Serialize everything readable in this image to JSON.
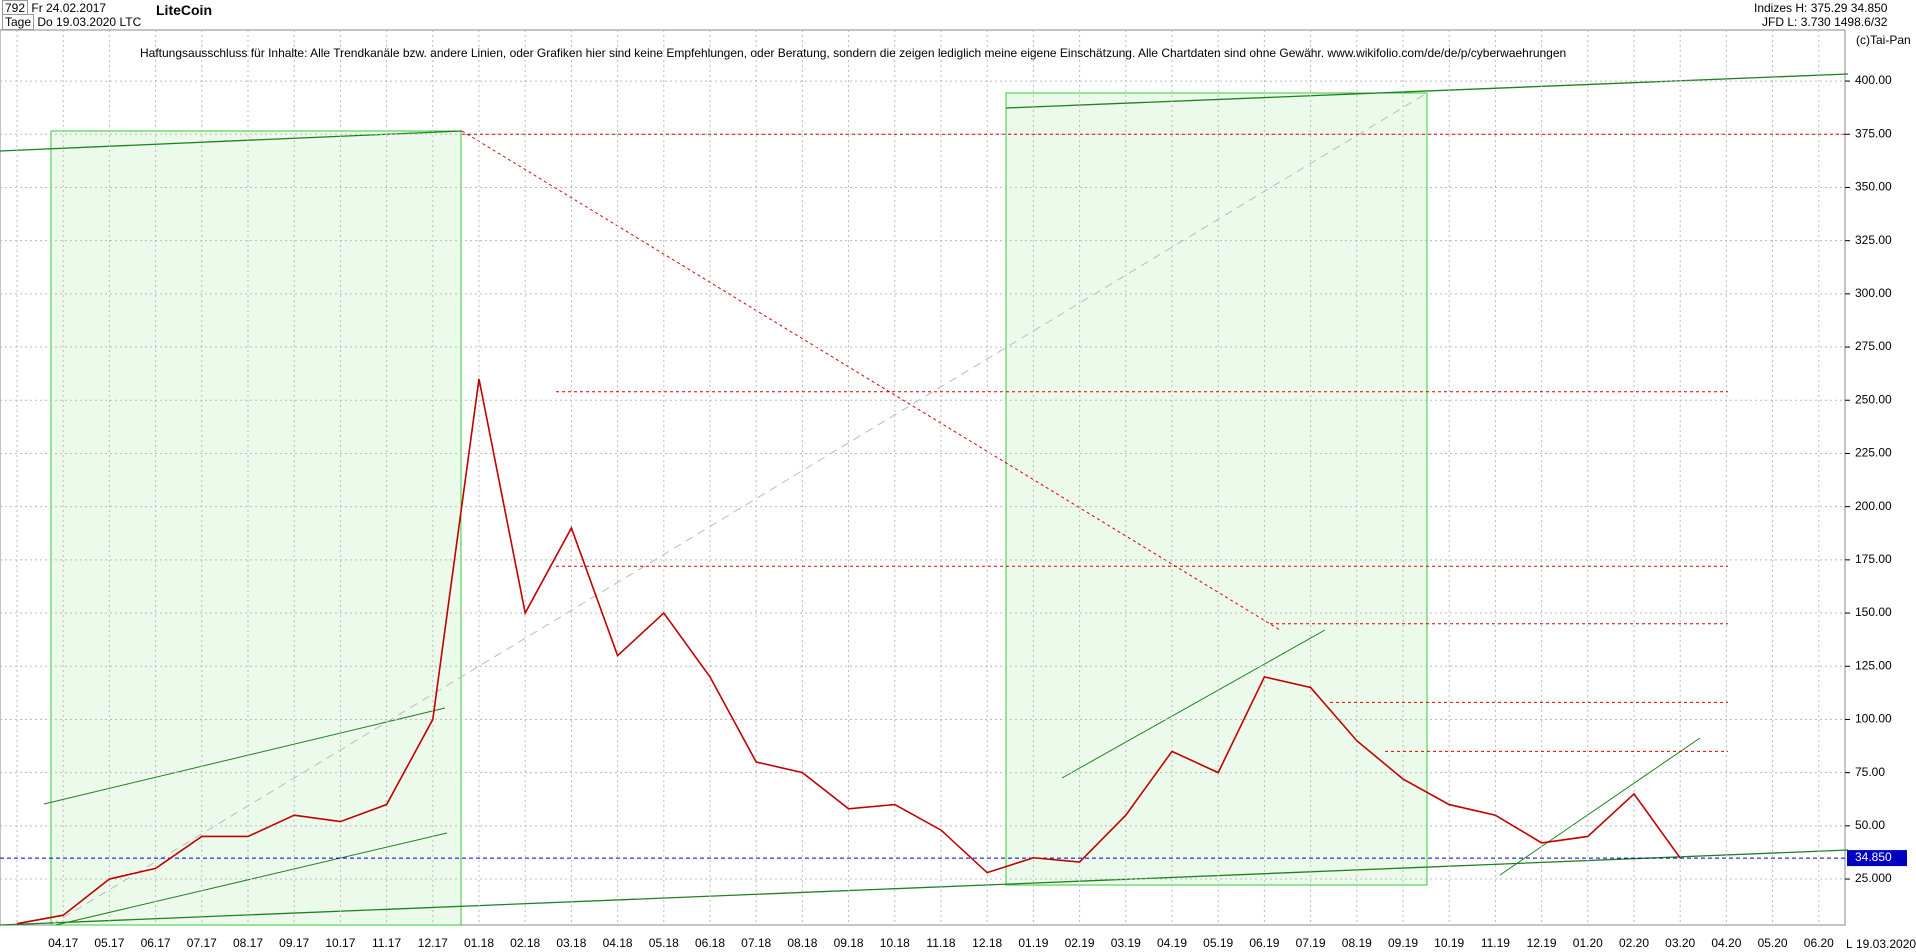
{
  "header": {
    "count": "792",
    "period": "Tage",
    "start_date": "Fr 24.02.2017",
    "end_date": "Do 19.03.2020",
    "symbol": "LTC",
    "indices": "Indizes",
    "source": "JFD",
    "high": "H: 375.29",
    "low": "L: 3.730",
    "last": "34.850",
    "ratio": "1498.6/32",
    "copyright": "(c)Tai-Pan",
    "axis_date": "19.03.2020",
    "axis_mode": "L"
  },
  "chart_data": {
    "type": "line",
    "title": "LiteCoin",
    "subtitle": "Haftungsausschluss für Inhalte: Alle Trendkanäle bzw. andere Linien, oder Grafiken hier sind keine Empfehlungen, oder Beratung, sondern die zeigen lediglich meine eigene Einschätzung. Alle Chartdaten sind ohne Gewähr.  www.wikifolio.com/de/de/p/cyberwaehrungen",
    "categories": [
      null,
      "04.17",
      "05.17",
      "06.17",
      "07.17",
      "08.17",
      "09.17",
      "10.17",
      "11.17",
      "12.17",
      "01.18",
      "02.18",
      "03.18",
      "04.18",
      "05.18",
      "06.18",
      "07.18",
      "08.18",
      "09.18",
      "10.18",
      "11.18",
      "12.18",
      "01.19",
      "02.19",
      "03.19",
      "04.19",
      "05.19",
      "06.19",
      "07.19",
      "08.19",
      "09.19",
      "10.19",
      "11.19",
      "12.19",
      "01.20",
      "02.20",
      "03.20",
      "04.20",
      "05.20",
      "06.20"
    ],
    "series": [
      {
        "color": "#c00000",
        "values": [
          4,
          8,
          25,
          30,
          45,
          45,
          55,
          52,
          60,
          100,
          260,
          150,
          190,
          130,
          150,
          120,
          80,
          75,
          58,
          60,
          48,
          28,
          35,
          33,
          55,
          85,
          75,
          120,
          115,
          90,
          72,
          60,
          55,
          42,
          45,
          65,
          34.85,
          null,
          null,
          null
        ]
      }
    ],
    "ylim": [
      3.4,
      424
    ],
    "yticks": [
      {
        "value": 25,
        "label": "25.000"
      },
      {
        "value": 50,
        "label": "50.00"
      },
      {
        "value": 75,
        "label": "75.00"
      },
      {
        "value": 100,
        "label": "100.00"
      },
      {
        "value": 125,
        "label": "125.00"
      },
      {
        "value": 150,
        "label": "150.00"
      },
      {
        "value": 175,
        "label": "175.00"
      },
      {
        "value": 200,
        "label": "200.00"
      },
      {
        "value": 225,
        "label": "225.00"
      },
      {
        "value": 250,
        "label": "250.00"
      },
      {
        "value": 275,
        "label": "275.00"
      },
      {
        "value": 300,
        "label": "300.00"
      },
      {
        "value": 325,
        "label": "325.00"
      },
      {
        "value": 350,
        "label": "350.00"
      },
      {
        "value": 375,
        "label": "375.00"
      },
      {
        "value": 400,
        "label": "400.00"
      }
    ],
    "levels": [
      375,
      254,
      172,
      145,
      108,
      85
    ],
    "level_color": "#e00000",
    "price_marker": {
      "value": 34.85,
      "label": "34.850",
      "color": "#0000c0"
    },
    "grid": true
  }
}
